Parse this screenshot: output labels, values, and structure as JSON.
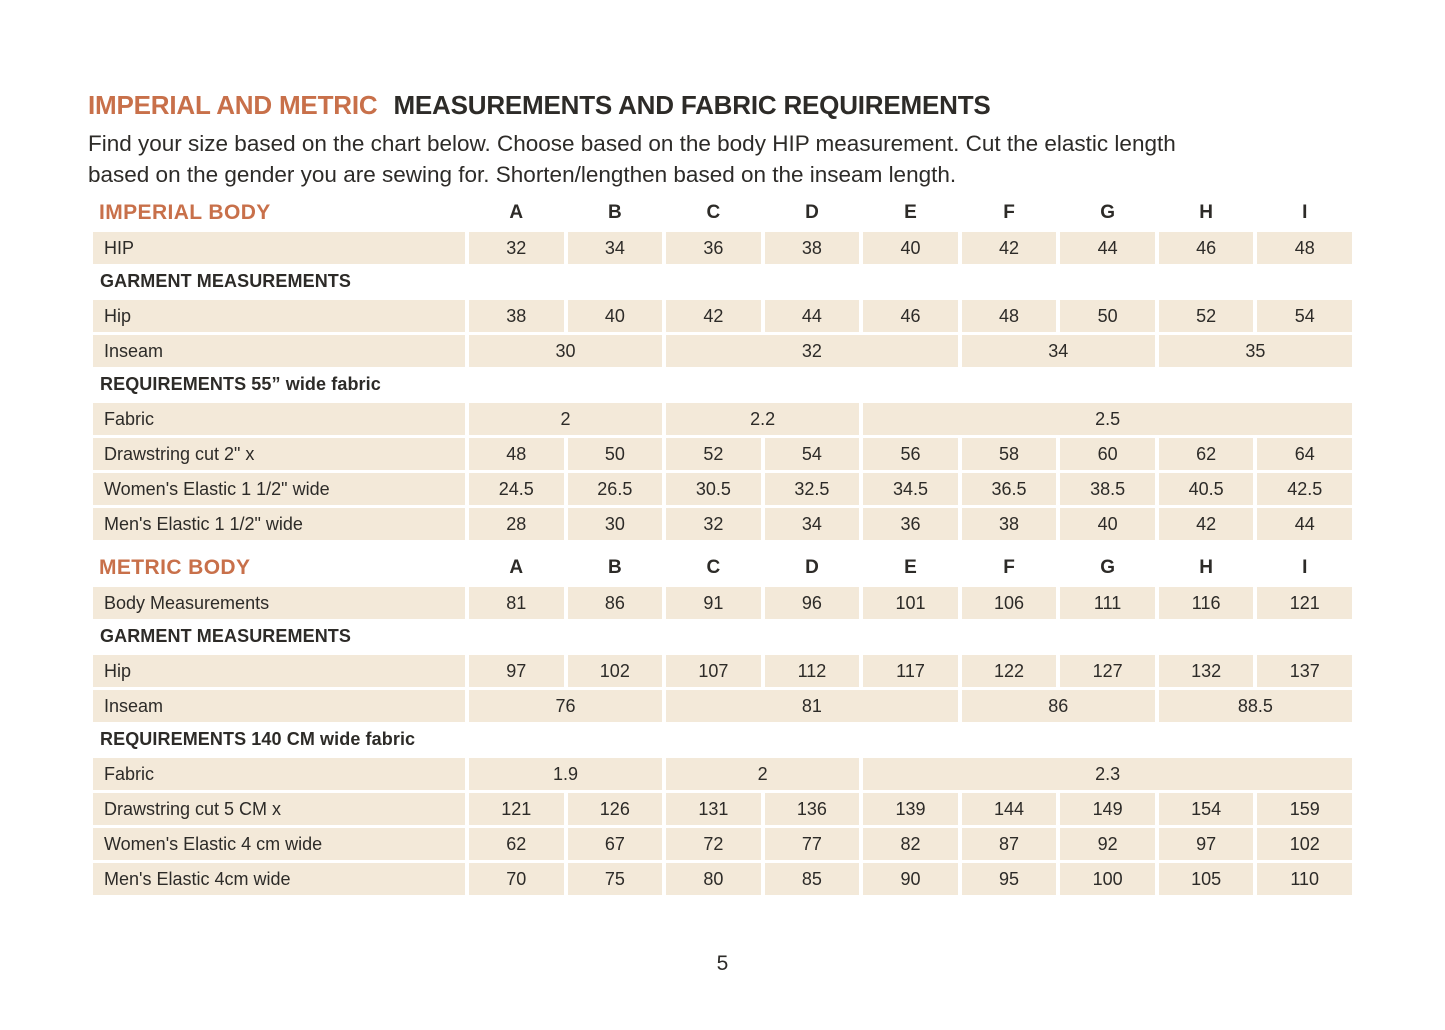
{
  "page": {
    "title_accent": "IMPERIAL AND METRIC",
    "title_main": "MEASUREMENTS AND FABRIC REQUIREMENTS",
    "subtitle_lines": [
      "Find your size based on the chart below. Choose based on the body HIP measurement. Cut the elastic length",
      "based on the gender you are sewing for. Shorten/lengthen based on the inseam length."
    ],
    "page_number": "5"
  },
  "colors": {
    "accent": "#C8704A",
    "cell_bg": "#F3E9D9",
    "text": "#2D2B28"
  },
  "columns": [
    "A",
    "B",
    "C",
    "D",
    "E",
    "F",
    "G",
    "H",
    "I"
  ],
  "tables": [
    {
      "id": "imperial",
      "header": "IMPERIAL BODY",
      "rows": [
        {
          "type": "data",
          "label": "HIP",
          "cells": [
            {
              "v": "32",
              "s": 1
            },
            {
              "v": "34",
              "s": 1
            },
            {
              "v": "36",
              "s": 1
            },
            {
              "v": "38",
              "s": 1
            },
            {
              "v": "40",
              "s": 1
            },
            {
              "v": "42",
              "s": 1
            },
            {
              "v": "44",
              "s": 1
            },
            {
              "v": "46",
              "s": 1
            },
            {
              "v": "48",
              "s": 1
            }
          ]
        },
        {
          "type": "section",
          "label": "GARMENT MEASUREMENTS"
        },
        {
          "type": "data",
          "label": "Hip",
          "cells": [
            {
              "v": "38",
              "s": 1
            },
            {
              "v": "40",
              "s": 1
            },
            {
              "v": "42",
              "s": 1
            },
            {
              "v": "44",
              "s": 1
            },
            {
              "v": "46",
              "s": 1
            },
            {
              "v": "48",
              "s": 1
            },
            {
              "v": "50",
              "s": 1
            },
            {
              "v": "52",
              "s": 1
            },
            {
              "v": "54",
              "s": 1
            }
          ]
        },
        {
          "type": "data",
          "label": "Inseam",
          "cells": [
            {
              "v": "30",
              "s": 2
            },
            {
              "v": "32",
              "s": 3
            },
            {
              "v": "34",
              "s": 2
            },
            {
              "v": "35",
              "s": 2
            }
          ]
        },
        {
          "type": "section",
          "label": "REQUIREMENTS 55” wide fabric"
        },
        {
          "type": "data",
          "label": "Fabric",
          "cells": [
            {
              "v": "2",
              "s": 2
            },
            {
              "v": "2.2",
              "s": 2
            },
            {
              "v": "2.5",
              "s": 5
            }
          ]
        },
        {
          "type": "data",
          "label": "Drawstring cut 2\" x",
          "cells": [
            {
              "v": "48",
              "s": 1
            },
            {
              "v": "50",
              "s": 1
            },
            {
              "v": "52",
              "s": 1
            },
            {
              "v": "54",
              "s": 1
            },
            {
              "v": "56",
              "s": 1
            },
            {
              "v": "58",
              "s": 1
            },
            {
              "v": "60",
              "s": 1
            },
            {
              "v": "62",
              "s": 1
            },
            {
              "v": "64",
              "s": 1
            }
          ]
        },
        {
          "type": "data",
          "label": "Women's Elastic 1 1/2\" wide",
          "cells": [
            {
              "v": "24.5",
              "s": 1
            },
            {
              "v": "26.5",
              "s": 1
            },
            {
              "v": "30.5",
              "s": 1
            },
            {
              "v": "32.5",
              "s": 1
            },
            {
              "v": "34.5",
              "s": 1
            },
            {
              "v": "36.5",
              "s": 1
            },
            {
              "v": "38.5",
              "s": 1
            },
            {
              "v": "40.5",
              "s": 1
            },
            {
              "v": "42.5",
              "s": 1
            }
          ]
        },
        {
          "type": "data",
          "label": "Men's Elastic 1 1/2\" wide",
          "cells": [
            {
              "v": "28",
              "s": 1
            },
            {
              "v": "30",
              "s": 1
            },
            {
              "v": "32",
              "s": 1
            },
            {
              "v": "34",
              "s": 1
            },
            {
              "v": "36",
              "s": 1
            },
            {
              "v": "38",
              "s": 1
            },
            {
              "v": "40",
              "s": 1
            },
            {
              "v": "42",
              "s": 1
            },
            {
              "v": "44",
              "s": 1
            }
          ]
        }
      ]
    },
    {
      "id": "metric",
      "header": "METRIC BODY",
      "rows": [
        {
          "type": "data",
          "label": "Body Measurements",
          "cells": [
            {
              "v": "81",
              "s": 1
            },
            {
              "v": "86",
              "s": 1
            },
            {
              "v": "91",
              "s": 1
            },
            {
              "v": "96",
              "s": 1
            },
            {
              "v": "101",
              "s": 1
            },
            {
              "v": "106",
              "s": 1
            },
            {
              "v": "111",
              "s": 1
            },
            {
              "v": "116",
              "s": 1
            },
            {
              "v": "121",
              "s": 1
            }
          ]
        },
        {
          "type": "section",
          "label": "GARMENT MEASUREMENTS"
        },
        {
          "type": "data",
          "label": "Hip",
          "cells": [
            {
              "v": "97",
              "s": 1
            },
            {
              "v": "102",
              "s": 1
            },
            {
              "v": "107",
              "s": 1
            },
            {
              "v": "112",
              "s": 1
            },
            {
              "v": "117",
              "s": 1
            },
            {
              "v": "122",
              "s": 1
            },
            {
              "v": "127",
              "s": 1
            },
            {
              "v": "132",
              "s": 1
            },
            {
              "v": "137",
              "s": 1
            }
          ]
        },
        {
          "type": "data",
          "label": "Inseam",
          "cells": [
            {
              "v": "76",
              "s": 2
            },
            {
              "v": "81",
              "s": 3
            },
            {
              "v": "86",
              "s": 2
            },
            {
              "v": "88.5",
              "s": 2
            }
          ]
        },
        {
          "type": "section",
          "label": "REQUIREMENTS 140 CM wide fabric"
        },
        {
          "type": "data",
          "label": "Fabric",
          "cells": [
            {
              "v": "1.9",
              "s": 2
            },
            {
              "v": "2",
              "s": 2
            },
            {
              "v": "2.3",
              "s": 5
            }
          ]
        },
        {
          "type": "data",
          "label": "Drawstring cut 5 CM x",
          "cells": [
            {
              "v": "121",
              "s": 1
            },
            {
              "v": "126",
              "s": 1
            },
            {
              "v": "131",
              "s": 1
            },
            {
              "v": "136",
              "s": 1
            },
            {
              "v": "139",
              "s": 1
            },
            {
              "v": "144",
              "s": 1
            },
            {
              "v": "149",
              "s": 1
            },
            {
              "v": "154",
              "s": 1
            },
            {
              "v": "159",
              "s": 1
            }
          ]
        },
        {
          "type": "data",
          "label": "Women's Elastic 4 cm wide",
          "cells": [
            {
              "v": "62",
              "s": 1
            },
            {
              "v": "67",
              "s": 1
            },
            {
              "v": "72",
              "s": 1
            },
            {
              "v": "77",
              "s": 1
            },
            {
              "v": "82",
              "s": 1
            },
            {
              "v": "87",
              "s": 1
            },
            {
              "v": "92",
              "s": 1
            },
            {
              "v": "97",
              "s": 1
            },
            {
              "v": "102",
              "s": 1
            }
          ]
        },
        {
          "type": "data",
          "label": "Men's Elastic 4cm wide",
          "cells": [
            {
              "v": "70",
              "s": 1
            },
            {
              "v": "75",
              "s": 1
            },
            {
              "v": "80",
              "s": 1
            },
            {
              "v": "85",
              "s": 1
            },
            {
              "v": "90",
              "s": 1
            },
            {
              "v": "95",
              "s": 1
            },
            {
              "v": "100",
              "s": 1
            },
            {
              "v": "105",
              "s": 1
            },
            {
              "v": "110",
              "s": 1
            }
          ]
        }
      ]
    }
  ]
}
